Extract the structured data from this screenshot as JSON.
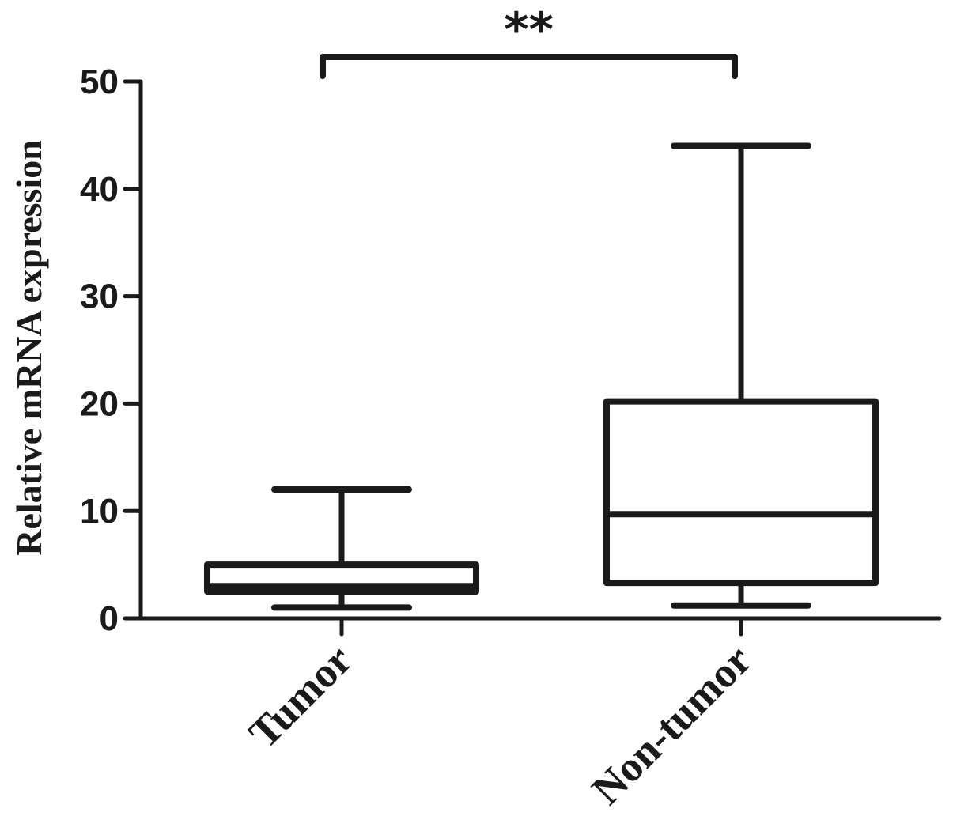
{
  "chart_data": {
    "type": "box",
    "title": "",
    "xlabel": "",
    "ylabel": "Relative mRNA expression",
    "ylim": [
      0,
      50
    ],
    "yticks": [
      0,
      10,
      20,
      30,
      40,
      50
    ],
    "ytick_labels": [
      "0",
      "10",
      "20",
      "30",
      "40",
      "50"
    ],
    "categories": [
      "Tumor",
      "Non-tumor"
    ],
    "boxes": [
      {
        "category": "Tumor",
        "min": 1.0,
        "q1": 2.5,
        "median": 3.0,
        "q3": 5.0,
        "max": 12.0
      },
      {
        "category": "Non-tumor",
        "min": 1.2,
        "q1": 3.3,
        "median": 9.7,
        "q3": 20.2,
        "max": 44.0
      }
    ],
    "annotations": [
      {
        "text": "**",
        "between": [
          "Tumor",
          "Non-tumor"
        ]
      }
    ],
    "grid": false,
    "legend": "none"
  }
}
